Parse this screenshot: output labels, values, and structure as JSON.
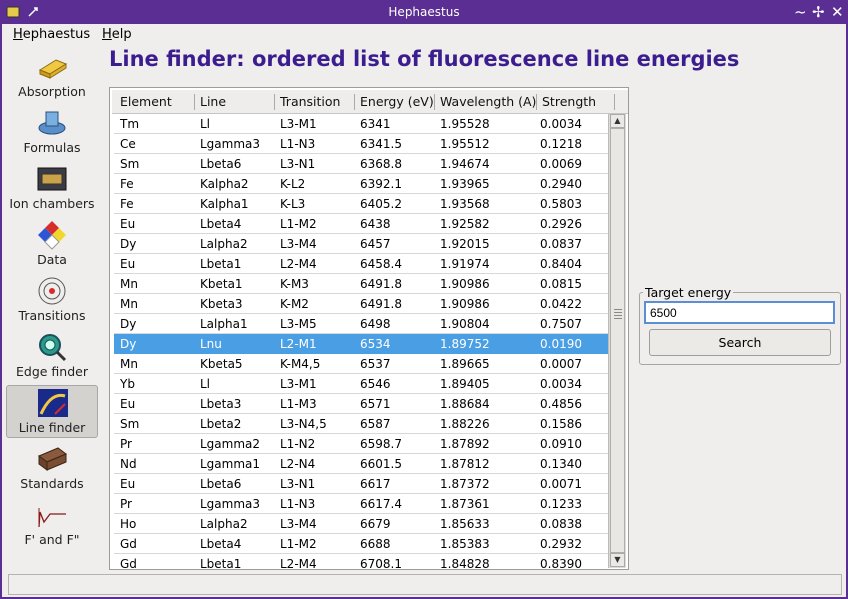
{
  "window": {
    "title": "Hephaestus"
  },
  "menu": [
    {
      "label": "Hephaestus"
    },
    {
      "label": "Help"
    }
  ],
  "sidebar": {
    "items": [
      {
        "label": "Absorption",
        "icon": "gold-bar-icon"
      },
      {
        "label": "Formulas",
        "icon": "formulas-icon"
      },
      {
        "label": "Ion chambers",
        "icon": "ion-chamber-icon"
      },
      {
        "label": "Data",
        "icon": "hazard-diamond-icon"
      },
      {
        "label": "Transitions",
        "icon": "atom-icon"
      },
      {
        "label": "Edge finder",
        "icon": "magnifier-icon"
      },
      {
        "label": "Line finder",
        "icon": "line-finder-icon"
      },
      {
        "label": "Standards",
        "icon": "standards-box-icon"
      },
      {
        "label": "F' and F\"",
        "icon": "anomalous-scattering-icon"
      }
    ],
    "active": "Line finder"
  },
  "heading": "Line finder: ordered list of fluorescence line energies",
  "table": {
    "columns": [
      "Element",
      "Line",
      "Transition",
      "Energy (eV)",
      "Wavelength (A)",
      "Strength"
    ],
    "rows": [
      [
        "Tm",
        "Ll",
        "L3-M1",
        "6341",
        "1.95528",
        "0.0034"
      ],
      [
        "Ce",
        "Lgamma3",
        "L1-N3",
        "6341.5",
        "1.95512",
        "0.1218"
      ],
      [
        "Sm",
        "Lbeta6",
        "L3-N1",
        "6368.8",
        "1.94674",
        "0.0069"
      ],
      [
        "Fe",
        "Kalpha2",
        "K-L2",
        "6392.1",
        "1.93965",
        "0.2940"
      ],
      [
        "Fe",
        "Kalpha1",
        "K-L3",
        "6405.2",
        "1.93568",
        "0.5803"
      ],
      [
        "Eu",
        "Lbeta4",
        "L1-M2",
        "6438",
        "1.92582",
        "0.2926"
      ],
      [
        "Dy",
        "Lalpha2",
        "L3-M4",
        "6457",
        "1.92015",
        "0.0837"
      ],
      [
        "Eu",
        "Lbeta1",
        "L2-M4",
        "6458.4",
        "1.91974",
        "0.8404"
      ],
      [
        "Mn",
        "Kbeta1",
        "K-M3",
        "6491.8",
        "1.90986",
        "0.0815"
      ],
      [
        "Mn",
        "Kbeta3",
        "K-M2",
        "6491.8",
        "1.90986",
        "0.0422"
      ],
      [
        "Dy",
        "Lalpha1",
        "L3-M5",
        "6498",
        "1.90804",
        "0.7507"
      ],
      [
        "Dy",
        "Lnu",
        "L2-M1",
        "6534",
        "1.89752",
        "0.0190"
      ],
      [
        "Mn",
        "Kbeta5",
        "K-M4,5",
        "6537",
        "1.89665",
        "0.0007"
      ],
      [
        "Yb",
        "Ll",
        "L3-M1",
        "6546",
        "1.89405",
        "0.0034"
      ],
      [
        "Eu",
        "Lbeta3",
        "L1-M3",
        "6571",
        "1.88684",
        "0.4856"
      ],
      [
        "Sm",
        "Lbeta2",
        "L3-N4,5",
        "6587",
        "1.88226",
        "0.1586"
      ],
      [
        "Pr",
        "Lgamma2",
        "L1-N2",
        "6598.7",
        "1.87892",
        "0.0910"
      ],
      [
        "Nd",
        "Lgamma1",
        "L2-N4",
        "6601.5",
        "1.87812",
        "0.1340"
      ],
      [
        "Eu",
        "Lbeta6",
        "L3-N1",
        "6617",
        "1.87372",
        "0.0071"
      ],
      [
        "Pr",
        "Lgamma3",
        "L1-N3",
        "6617.4",
        "1.87361",
        "0.1233"
      ],
      [
        "Ho",
        "Lalpha2",
        "L3-M4",
        "6679",
        "1.85633",
        "0.0838"
      ],
      [
        "Gd",
        "Lbeta4",
        "L1-M2",
        "6688",
        "1.85383",
        "0.2932"
      ],
      [
        "Gd",
        "Lbeta1",
        "L2-M4",
        "6708.1",
        "1.84828",
        "0.8390"
      ]
    ],
    "selected_row": 11
  },
  "target": {
    "title": "Target energy",
    "value": "6500",
    "button": "Search"
  },
  "colors": {
    "titlebar": "#5b2e93",
    "heading": "#3b1d8f",
    "selection": "#4a9ee4"
  }
}
